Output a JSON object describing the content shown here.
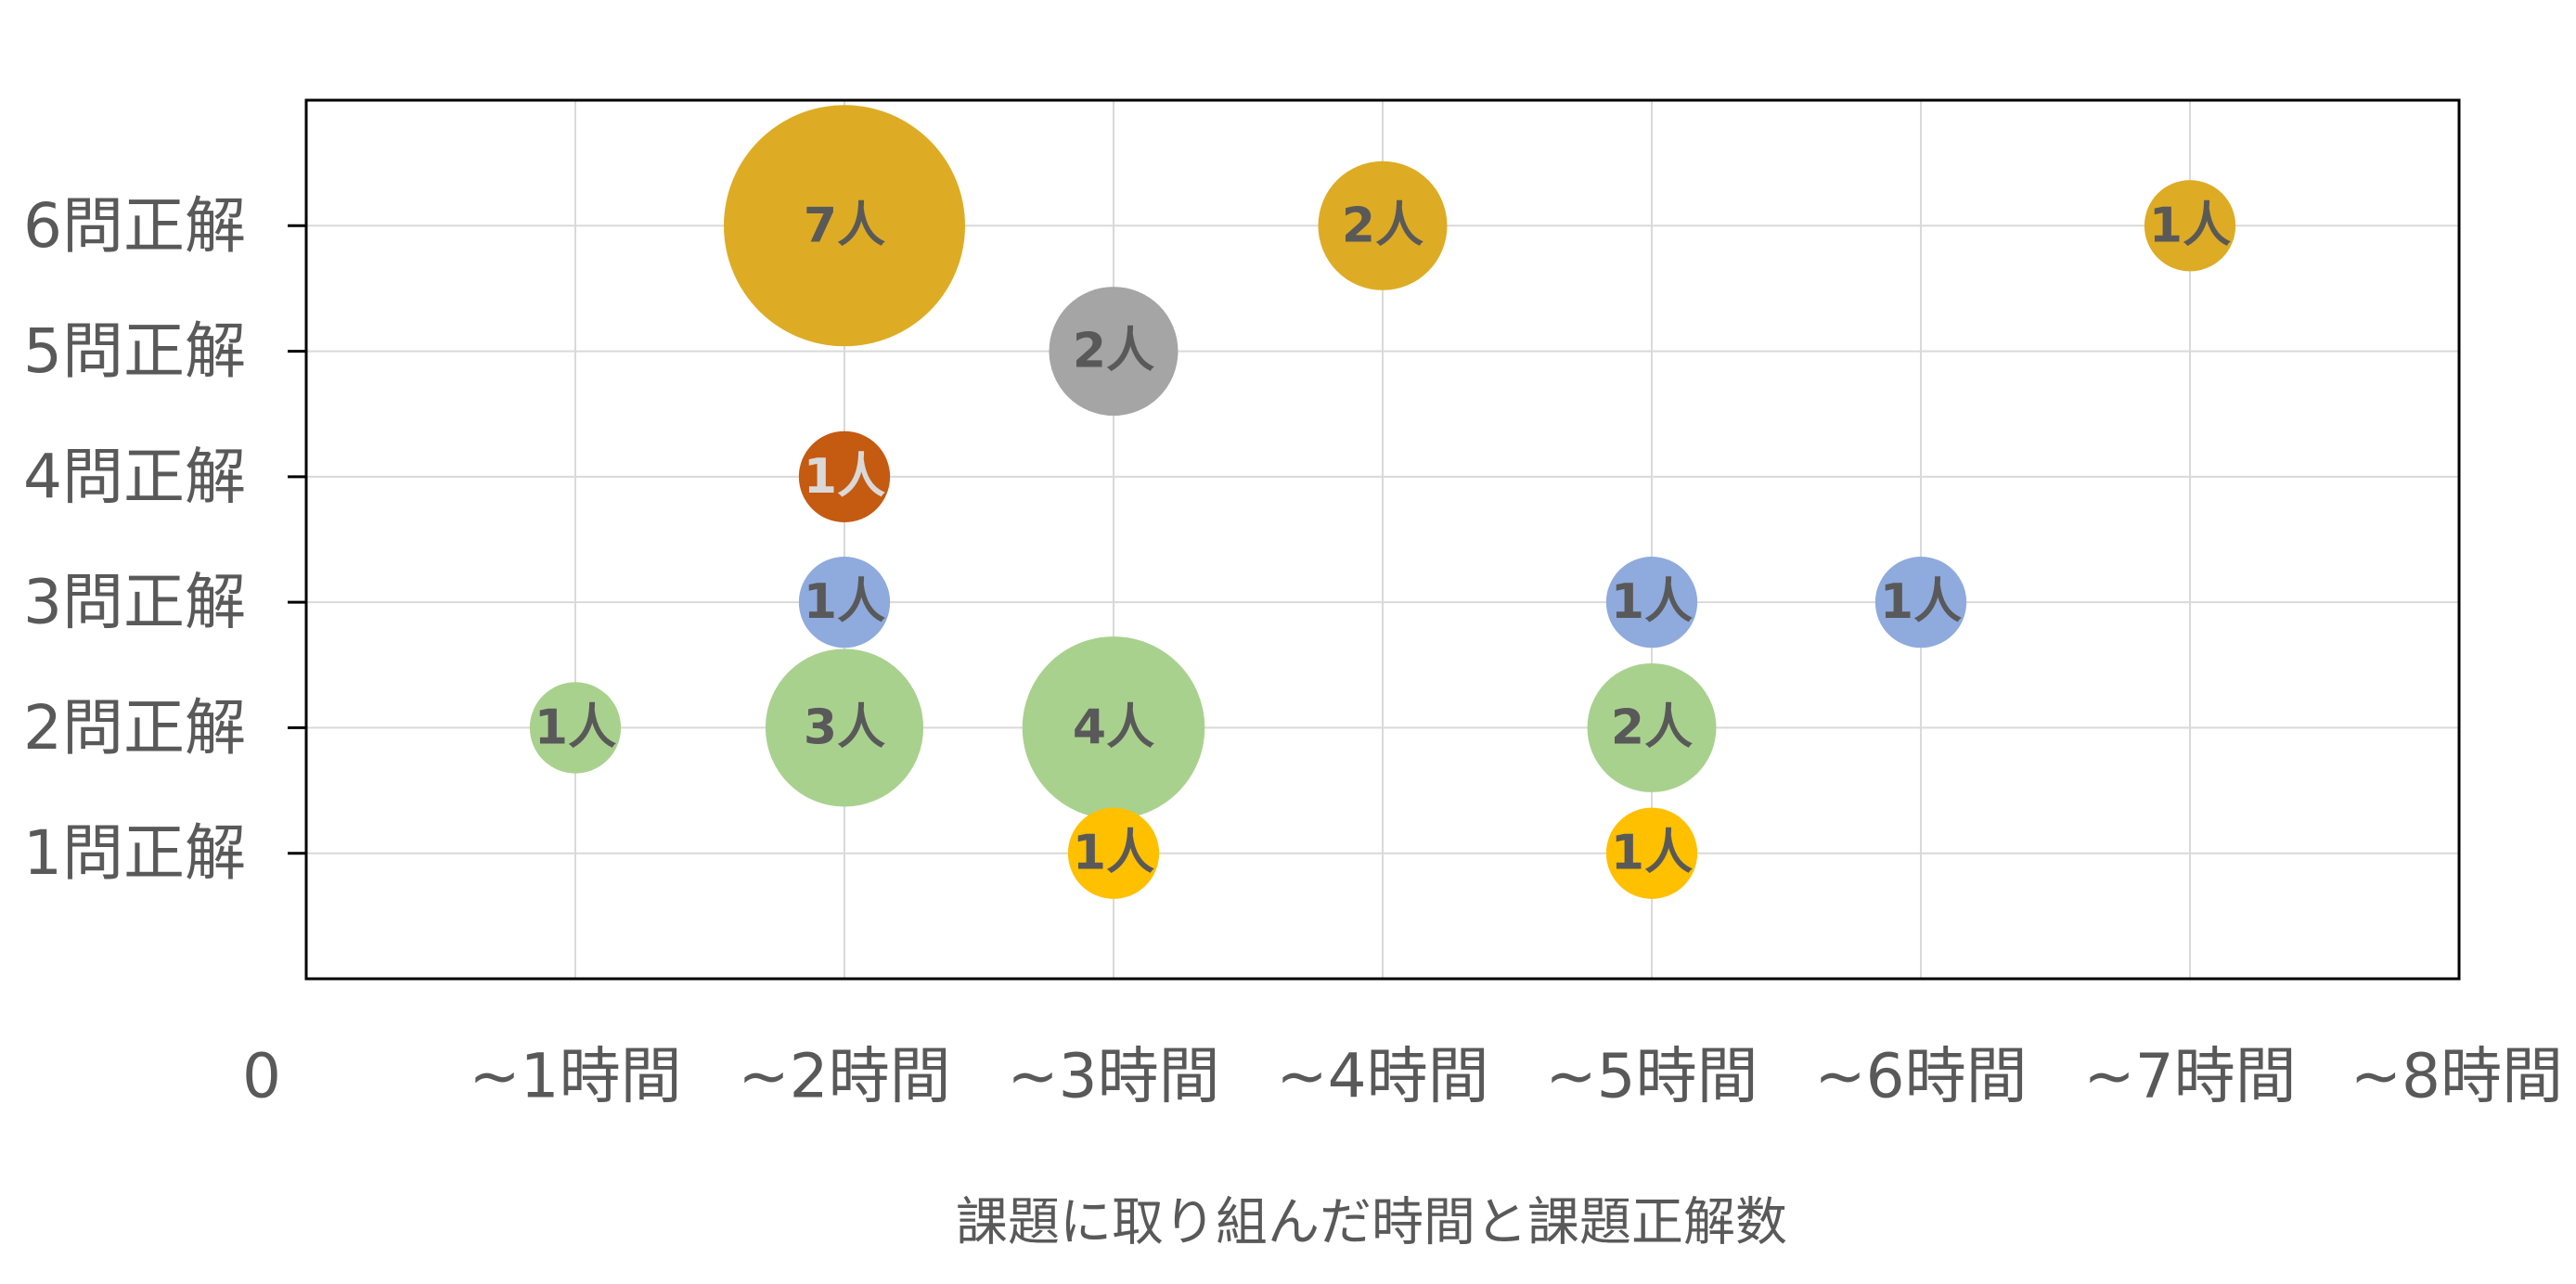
{
  "chart_data": {
    "type": "scatter",
    "subtype": "bubble",
    "title": "",
    "xlabel": "課題に取り組んだ時間と課題正解数",
    "ylabel": "",
    "xlim": [
      0,
      8
    ],
    "ylim": [
      0,
      7
    ],
    "x_ticks": [
      {
        "value": 0,
        "label": "0"
      },
      {
        "value": 1,
        "label": "~1時間"
      },
      {
        "value": 2,
        "label": "~2時間"
      },
      {
        "value": 3,
        "label": "~3時間"
      },
      {
        "value": 4,
        "label": "~4時間"
      },
      {
        "value": 5,
        "label": "~5時間"
      },
      {
        "value": 6,
        "label": "~6時間"
      },
      {
        "value": 7,
        "label": "~7時間"
      },
      {
        "value": 8,
        "label": "~8時間"
      }
    ],
    "y_ticks": [
      {
        "value": 1,
        "label": "1問正解"
      },
      {
        "value": 2,
        "label": "2問正解"
      },
      {
        "value": 3,
        "label": "3問正解"
      },
      {
        "value": 4,
        "label": "4問正解"
      },
      {
        "value": 5,
        "label": "5問正解"
      },
      {
        "value": 6,
        "label": "6問正解"
      }
    ],
    "grid": true,
    "legend": "none",
    "points": [
      {
        "x": 2,
        "y": 6,
        "size": 7,
        "label": "7人",
        "color": "#DDAC24",
        "label_color": "#595959"
      },
      {
        "x": 4,
        "y": 6,
        "size": 2,
        "label": "2人",
        "color": "#DDAC24",
        "label_color": "#595959"
      },
      {
        "x": 7,
        "y": 6,
        "size": 1,
        "label": "1人",
        "color": "#DDAC24",
        "label_color": "#595959"
      },
      {
        "x": 3,
        "y": 5,
        "size": 2,
        "label": "2人",
        "color": "#A5A5A5",
        "label_color": "#595959"
      },
      {
        "x": 2,
        "y": 4,
        "size": 1,
        "label": "1人",
        "color": "#C55A11",
        "label_color": "#D9D9D9"
      },
      {
        "x": 2,
        "y": 3,
        "size": 1,
        "label": "1人",
        "color": "#8FAADC",
        "label_color": "#595959"
      },
      {
        "x": 5,
        "y": 3,
        "size": 1,
        "label": "1人",
        "color": "#8FAADC",
        "label_color": "#595959"
      },
      {
        "x": 6,
        "y": 3,
        "size": 1,
        "label": "1人",
        "color": "#8FAADC",
        "label_color": "#595959"
      },
      {
        "x": 1,
        "y": 2,
        "size": 1,
        "label": "1人",
        "color": "#A9D18E",
        "label_color": "#595959"
      },
      {
        "x": 2,
        "y": 2,
        "size": 3,
        "label": "3人",
        "color": "#A9D18E",
        "label_color": "#595959"
      },
      {
        "x": 3,
        "y": 2,
        "size": 4,
        "label": "4人",
        "color": "#A9D18E",
        "label_color": "#595959"
      },
      {
        "x": 5,
        "y": 2,
        "size": 2,
        "label": "2人",
        "color": "#A9D18E",
        "label_color": "#595959"
      },
      {
        "x": 3,
        "y": 1,
        "size": 1,
        "label": "1人",
        "color": "#FFC000",
        "label_color": "#595959"
      },
      {
        "x": 5,
        "y": 1,
        "size": 1,
        "label": "1人",
        "color": "#FFC000",
        "label_color": "#595959"
      }
    ]
  }
}
